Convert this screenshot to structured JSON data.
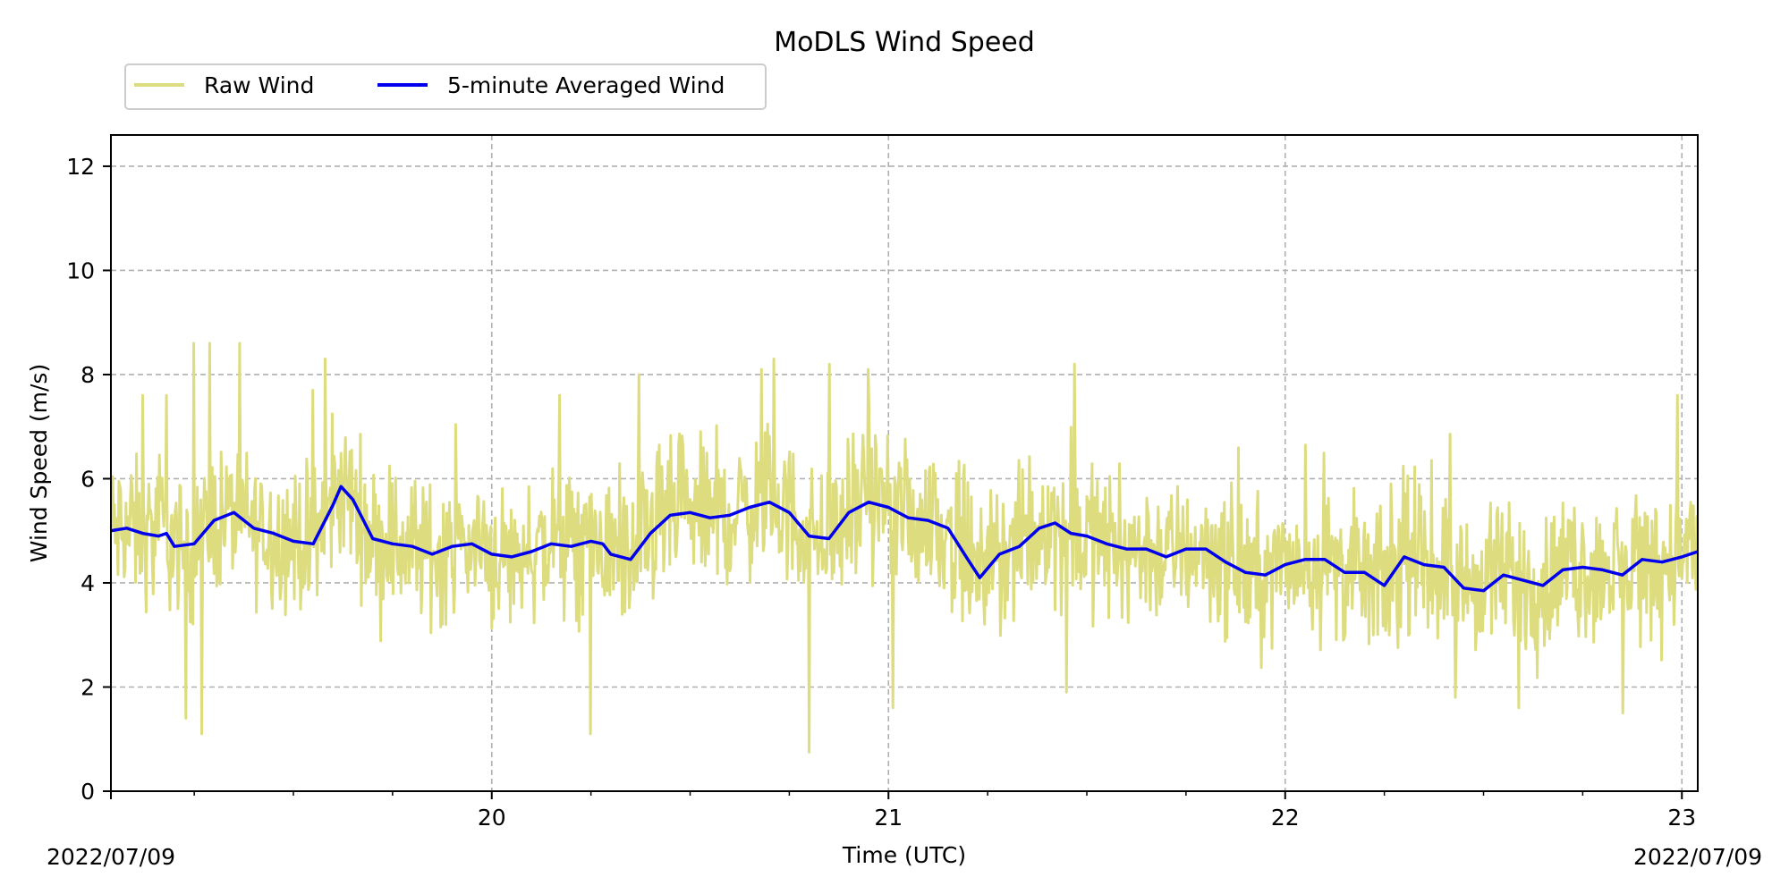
{
  "chart_data": {
    "type": "line",
    "title": "MoDLS Wind Speed",
    "xlabel": "Time (UTC)",
    "ylabel": "Wind Speed (m/s)",
    "start_date_label": "2022/07/09",
    "end_date_label": "2022/07/09",
    "xlim": [
      19.04,
      23.04
    ],
    "ylim": [
      0,
      12.6
    ],
    "y_ticks": [
      0,
      2,
      4,
      6,
      8,
      10,
      12
    ],
    "x_major_ticks": [
      20,
      21,
      22,
      23
    ],
    "x_minor_ticks": [
      19.25,
      19.5,
      19.75,
      20.25,
      20.5,
      20.75,
      21.25,
      21.5,
      21.75,
      22.25,
      22.5,
      22.75
    ],
    "grid": true,
    "legend": {
      "placement": "top-left-outside",
      "columns": 2
    },
    "series": [
      {
        "name": "Raw Wind",
        "color": "#dddd7f",
        "kind": "raw",
        "spikes": [
          {
            "x": 19.25,
            "y": 8.6
          },
          {
            "x": 19.29,
            "y": 8.6
          },
          {
            "x": 19.12,
            "y": 7.6
          },
          {
            "x": 19.18,
            "y": 7.6
          },
          {
            "x": 19.55,
            "y": 7.7
          },
          {
            "x": 19.58,
            "y": 8.3
          },
          {
            "x": 20.17,
            "y": 7.6
          },
          {
            "x": 20.37,
            "y": 8.0
          },
          {
            "x": 20.68,
            "y": 8.1
          },
          {
            "x": 20.71,
            "y": 8.3
          },
          {
            "x": 20.85,
            "y": 8.2
          },
          {
            "x": 20.95,
            "y": 8.1
          },
          {
            "x": 21.47,
            "y": 8.2
          },
          {
            "x": 22.99,
            "y": 7.6
          },
          {
            "x": 19.23,
            "y": 1.4
          },
          {
            "x": 19.27,
            "y": 1.1
          },
          {
            "x": 20.25,
            "y": 1.1
          },
          {
            "x": 20.8,
            "y": 0.75
          },
          {
            "x": 21.01,
            "y": 1.6
          },
          {
            "x": 21.45,
            "y": 1.9
          },
          {
            "x": 22.43,
            "y": 1.8
          },
          {
            "x": 22.59,
            "y": 1.6
          },
          {
            "x": 22.85,
            "y": 1.5
          }
        ]
      },
      {
        "name": "5-minute Averaged Wind",
        "color": "#0000ee",
        "kind": "smoothed",
        "x": [
          19.04,
          19.08,
          19.12,
          19.16,
          19.18,
          19.2,
          19.25,
          19.3,
          19.35,
          19.4,
          19.45,
          19.5,
          19.55,
          19.58,
          19.6,
          19.62,
          19.65,
          19.7,
          19.75,
          19.8,
          19.85,
          19.9,
          19.95,
          20.0,
          20.05,
          20.1,
          20.15,
          20.2,
          20.25,
          20.28,
          20.3,
          20.35,
          20.4,
          20.45,
          20.5,
          20.55,
          20.6,
          20.65,
          20.7,
          20.75,
          20.8,
          20.85,
          20.9,
          20.95,
          21.0,
          21.05,
          21.1,
          21.15,
          21.2,
          21.23,
          21.28,
          21.33,
          21.38,
          21.42,
          21.46,
          21.5,
          21.55,
          21.6,
          21.65,
          21.7,
          21.75,
          21.8,
          21.85,
          21.9,
          21.95,
          22.0,
          22.05,
          22.1,
          22.15,
          22.2,
          22.25,
          22.3,
          22.35,
          22.4,
          22.45,
          22.5,
          22.55,
          22.6,
          22.65,
          22.7,
          22.75,
          22.8,
          22.85,
          22.9,
          22.95,
          23.0,
          23.04
        ],
        "y": [
          5.0,
          5.05,
          4.95,
          4.9,
          4.95,
          4.7,
          4.75,
          5.2,
          5.35,
          5.05,
          4.95,
          4.8,
          4.75,
          5.2,
          5.5,
          5.85,
          5.6,
          4.85,
          4.75,
          4.7,
          4.55,
          4.7,
          4.75,
          4.55,
          4.5,
          4.6,
          4.75,
          4.7,
          4.8,
          4.75,
          4.55,
          4.45,
          4.95,
          5.3,
          5.35,
          5.25,
          5.3,
          5.45,
          5.55,
          5.35,
          4.9,
          4.85,
          5.35,
          5.55,
          5.45,
          5.25,
          5.2,
          5.05,
          4.45,
          4.1,
          4.55,
          4.7,
          5.05,
          5.15,
          4.95,
          4.9,
          4.75,
          4.65,
          4.65,
          4.5,
          4.65,
          4.65,
          4.4,
          4.2,
          4.15,
          4.35,
          4.45,
          4.45,
          4.2,
          4.2,
          3.95,
          4.5,
          4.35,
          4.3,
          3.9,
          3.85,
          4.15,
          4.05,
          3.95,
          4.25,
          4.3,
          4.25,
          4.15,
          4.45,
          4.4,
          4.5,
          4.6
        ]
      }
    ]
  }
}
